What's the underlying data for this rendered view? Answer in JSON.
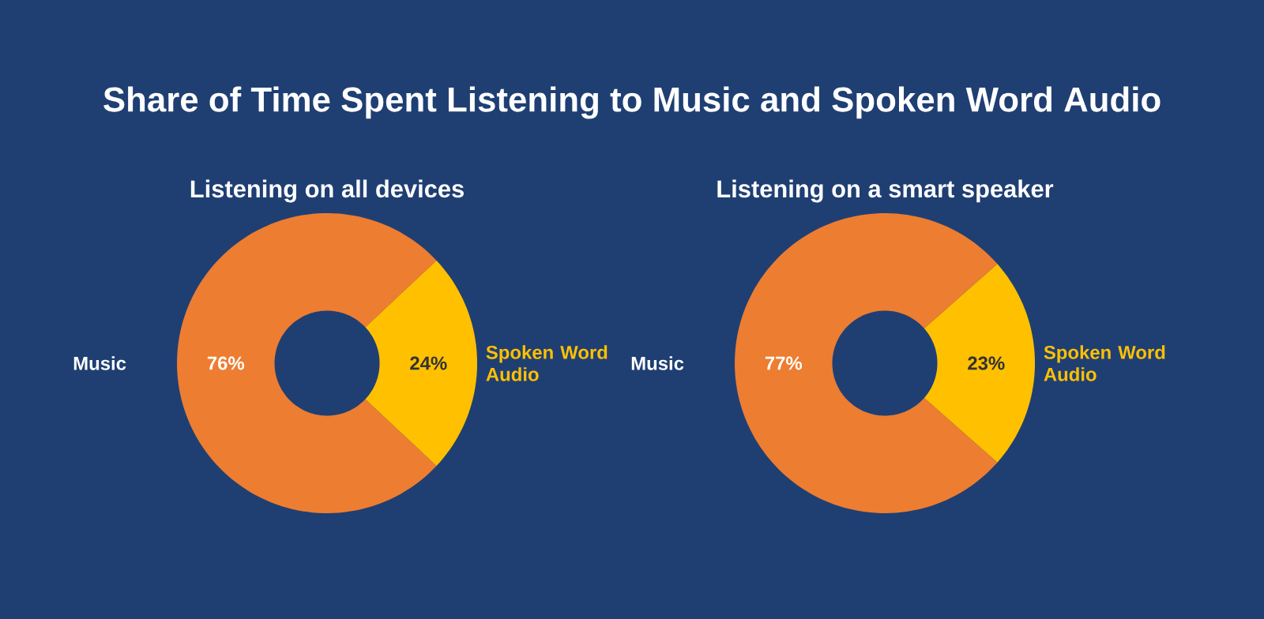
{
  "chart_data": [
    {
      "type": "donut",
      "title": "Share of Time Spent Listening to Music and Spoken Word Audio",
      "subtitle": "Listening on all devices",
      "categories": [
        "Music",
        "Spoken Word Audio"
      ],
      "values": [
        76,
        24
      ],
      "colors": [
        "#ed7d31",
        "#ffc000"
      ],
      "value_labels": [
        "76%",
        "24%"
      ]
    },
    {
      "type": "donut",
      "title": "Listening on a smart speaker",
      "categories": [
        "Music",
        "Spoken Word Audio"
      ],
      "values": [
        77,
        23
      ],
      "colors": [
        "#ed7d31",
        "#ffc000"
      ],
      "value_labels": [
        "77%",
        "23%"
      ]
    }
  ]
}
